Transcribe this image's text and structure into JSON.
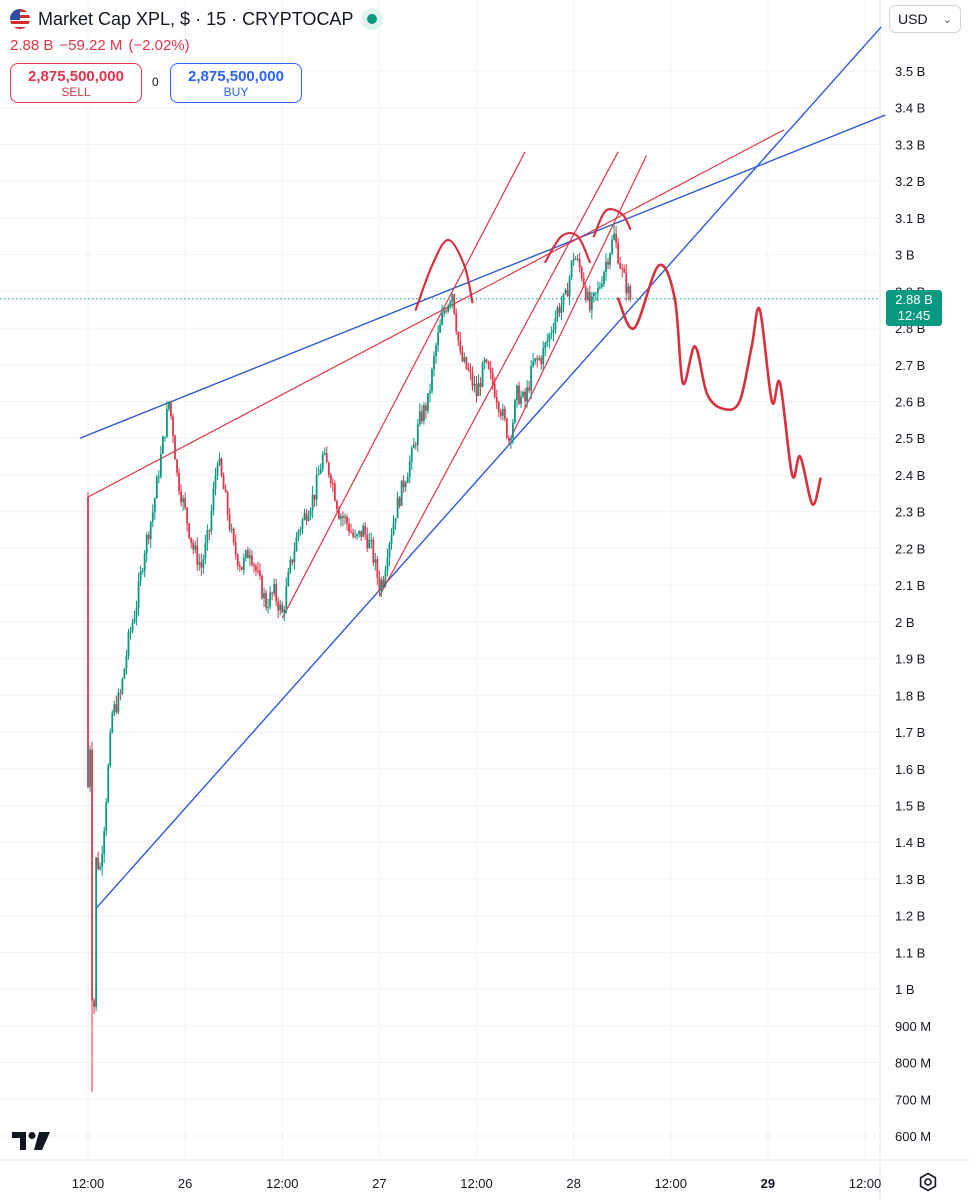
{
  "header": {
    "title": "Market Cap XPL, $ · 15 · CRYPTOCAP",
    "last": "2.88 B",
    "change": "−59.22 M",
    "change_pct": "(−2.02%)"
  },
  "trade": {
    "sell_value": "2,875,500,000",
    "sell_label": "SELL",
    "spread": "0",
    "buy_value": "2,875,500,000",
    "buy_label": "BUY"
  },
  "currency": {
    "label": "USD",
    "icon": "chevron-down-icon"
  },
  "last_price": {
    "value": "2.88 B",
    "countdown": "12:45"
  },
  "colors": {
    "up": "#089981",
    "down": "#e0354a",
    "trendline_blue": "#2d5ad6",
    "trendline_red": "#e0354a",
    "grid": "#f0f3fa"
  },
  "chart_data": {
    "type": "candlestick",
    "y_unit": "B",
    "ylim": [
      0.55,
      3.6
    ],
    "y_ticks": [
      "600 M",
      "700 M",
      "800 M",
      "900 M",
      "1 B",
      "1.1 B",
      "1.2 B",
      "1.3 B",
      "1.4 B",
      "1.5 B",
      "1.6 B",
      "1.7 B",
      "1.8 B",
      "1.9 B",
      "2 B",
      "2.1 B",
      "2.2 B",
      "2.3 B",
      "2.4 B",
      "2.5 B",
      "2.6 B",
      "2.7 B",
      "2.8 B",
      "2.9 B",
      "3 B",
      "3.1 B",
      "3.2 B",
      "3.3 B",
      "3.4 B",
      "3.5 B"
    ],
    "y_tick_values": [
      0.6,
      0.7,
      0.8,
      0.9,
      1.0,
      1.1,
      1.2,
      1.3,
      1.4,
      1.5,
      1.6,
      1.7,
      1.8,
      1.9,
      2.0,
      2.1,
      2.2,
      2.3,
      2.4,
      2.5,
      2.6,
      2.7,
      2.8,
      2.9,
      3.0,
      3.1,
      3.2,
      3.3,
      3.4,
      3.5
    ],
    "x_ticks": [
      "12:00",
      "26",
      "12:00",
      "27",
      "12:00",
      "28",
      "12:00",
      "29",
      "12:00"
    ],
    "x_tick_bold": [
      false,
      false,
      false,
      false,
      false,
      false,
      false,
      true,
      false
    ],
    "x_tick_hours": [
      0,
      12,
      24,
      36,
      48,
      60,
      72,
      84,
      96
    ],
    "last_price": 2.88,
    "price_path": [
      [
        0.0,
        2.34
      ],
      [
        0.6,
        0.72
      ],
      [
        1.0,
        1.35
      ],
      [
        1.5,
        1.33
      ],
      [
        2.0,
        1.45
      ],
      [
        3.0,
        1.75
      ],
      [
        4.0,
        1.8
      ],
      [
        5.0,
        1.95
      ],
      [
        6.0,
        2.05
      ],
      [
        7.0,
        2.2
      ],
      [
        8.0,
        2.3
      ],
      [
        9.0,
        2.45
      ],
      [
        10.0,
        2.6
      ],
      [
        10.5,
        2.52
      ],
      [
        11.0,
        2.4
      ],
      [
        12.0,
        2.3
      ],
      [
        13.0,
        2.2
      ],
      [
        14.0,
        2.15
      ],
      [
        15.0,
        2.25
      ],
      [
        16.0,
        2.45
      ],
      [
        17.0,
        2.33
      ],
      [
        18.0,
        2.2
      ],
      [
        19.0,
        2.15
      ],
      [
        20.0,
        2.2
      ],
      [
        21.0,
        2.12
      ],
      [
        22.0,
        2.05
      ],
      [
        23.0,
        2.08
      ],
      [
        24.0,
        2.02
      ],
      [
        25.0,
        2.15
      ],
      [
        26.0,
        2.25
      ],
      [
        27.0,
        2.3
      ],
      [
        28.0,
        2.35
      ],
      [
        29.0,
        2.45
      ],
      [
        30.0,
        2.4
      ],
      [
        31.0,
        2.3
      ],
      [
        32.0,
        2.27
      ],
      [
        33.0,
        2.22
      ],
      [
        34.0,
        2.25
      ],
      [
        35.0,
        2.2
      ],
      [
        36.0,
        2.1
      ],
      [
        36.5,
        2.12
      ],
      [
        37.0,
        2.2
      ],
      [
        38.0,
        2.3
      ],
      [
        39.0,
        2.38
      ],
      [
        40.0,
        2.45
      ],
      [
        41.0,
        2.55
      ],
      [
        42.0,
        2.6
      ],
      [
        43.0,
        2.75
      ],
      [
        44.0,
        2.85
      ],
      [
        45.0,
        2.9
      ],
      [
        46.0,
        2.72
      ],
      [
        47.0,
        2.68
      ],
      [
        48.0,
        2.62
      ],
      [
        49.0,
        2.7
      ],
      [
        50.0,
        2.65
      ],
      [
        51.0,
        2.58
      ],
      [
        52.0,
        2.5
      ],
      [
        52.5,
        2.55
      ],
      [
        53.0,
        2.62
      ],
      [
        54.0,
        2.6
      ],
      [
        55.0,
        2.7
      ],
      [
        56.0,
        2.72
      ],
      [
        57.0,
        2.78
      ],
      [
        58.0,
        2.85
      ],
      [
        59.0,
        2.88
      ],
      [
        60.0,
        3.0
      ],
      [
        61.0,
        2.95
      ],
      [
        62.0,
        2.85
      ],
      [
        63.0,
        2.9
      ],
      [
        64.0,
        2.98
      ],
      [
        65.0,
        3.05
      ],
      [
        66.0,
        2.95
      ],
      [
        67.0,
        2.88
      ]
    ],
    "trendlines_blue": [
      [
        [
          -1.0,
          2.5
        ],
        [
          98.5,
          3.38
        ]
      ],
      [
        [
          1.0,
          1.22
        ],
        [
          98.0,
          3.62
        ]
      ]
    ],
    "trendlines_red": [
      [
        [
          0.0,
          2.34
        ],
        [
          86.0,
          3.34
        ]
      ],
      [
        [
          24.0,
          2.01
        ],
        [
          54.0,
          3.28
        ]
      ],
      [
        [
          36.0,
          2.07
        ],
        [
          65.5,
          3.28
        ]
      ],
      [
        [
          52.0,
          2.49
        ],
        [
          69.0,
          3.27
        ]
      ]
    ],
    "projection": [
      [
        65.5,
        2.88
      ],
      [
        67.5,
        2.8
      ],
      [
        70.5,
        2.97
      ],
      [
        72.5,
        2.88
      ],
      [
        73.5,
        2.65
      ],
      [
        75.0,
        2.75
      ],
      [
        76.5,
        2.62
      ],
      [
        78.5,
        2.58
      ],
      [
        80.5,
        2.6
      ],
      [
        82.0,
        2.75
      ],
      [
        83.0,
        2.85
      ],
      [
        84.5,
        2.6
      ],
      [
        85.5,
        2.65
      ],
      [
        87.0,
        2.4
      ],
      [
        88.0,
        2.45
      ],
      [
        89.5,
        2.32
      ],
      [
        90.5,
        2.39
      ]
    ],
    "arcs": [
      [
        [
          40.5,
          2.85
        ],
        [
          42.5,
          2.97
        ],
        [
          44.5,
          3.04
        ],
        [
          46.5,
          2.97
        ],
        [
          47.5,
          2.87
        ]
      ],
      [
        [
          56.5,
          2.98
        ],
        [
          58.5,
          3.05
        ],
        [
          60.5,
          3.05
        ],
        [
          62.0,
          2.98
        ]
      ],
      [
        [
          62.5,
          3.05
        ],
        [
          64.0,
          3.12
        ],
        [
          66.0,
          3.11
        ],
        [
          67.0,
          3.07
        ]
      ]
    ]
  }
}
